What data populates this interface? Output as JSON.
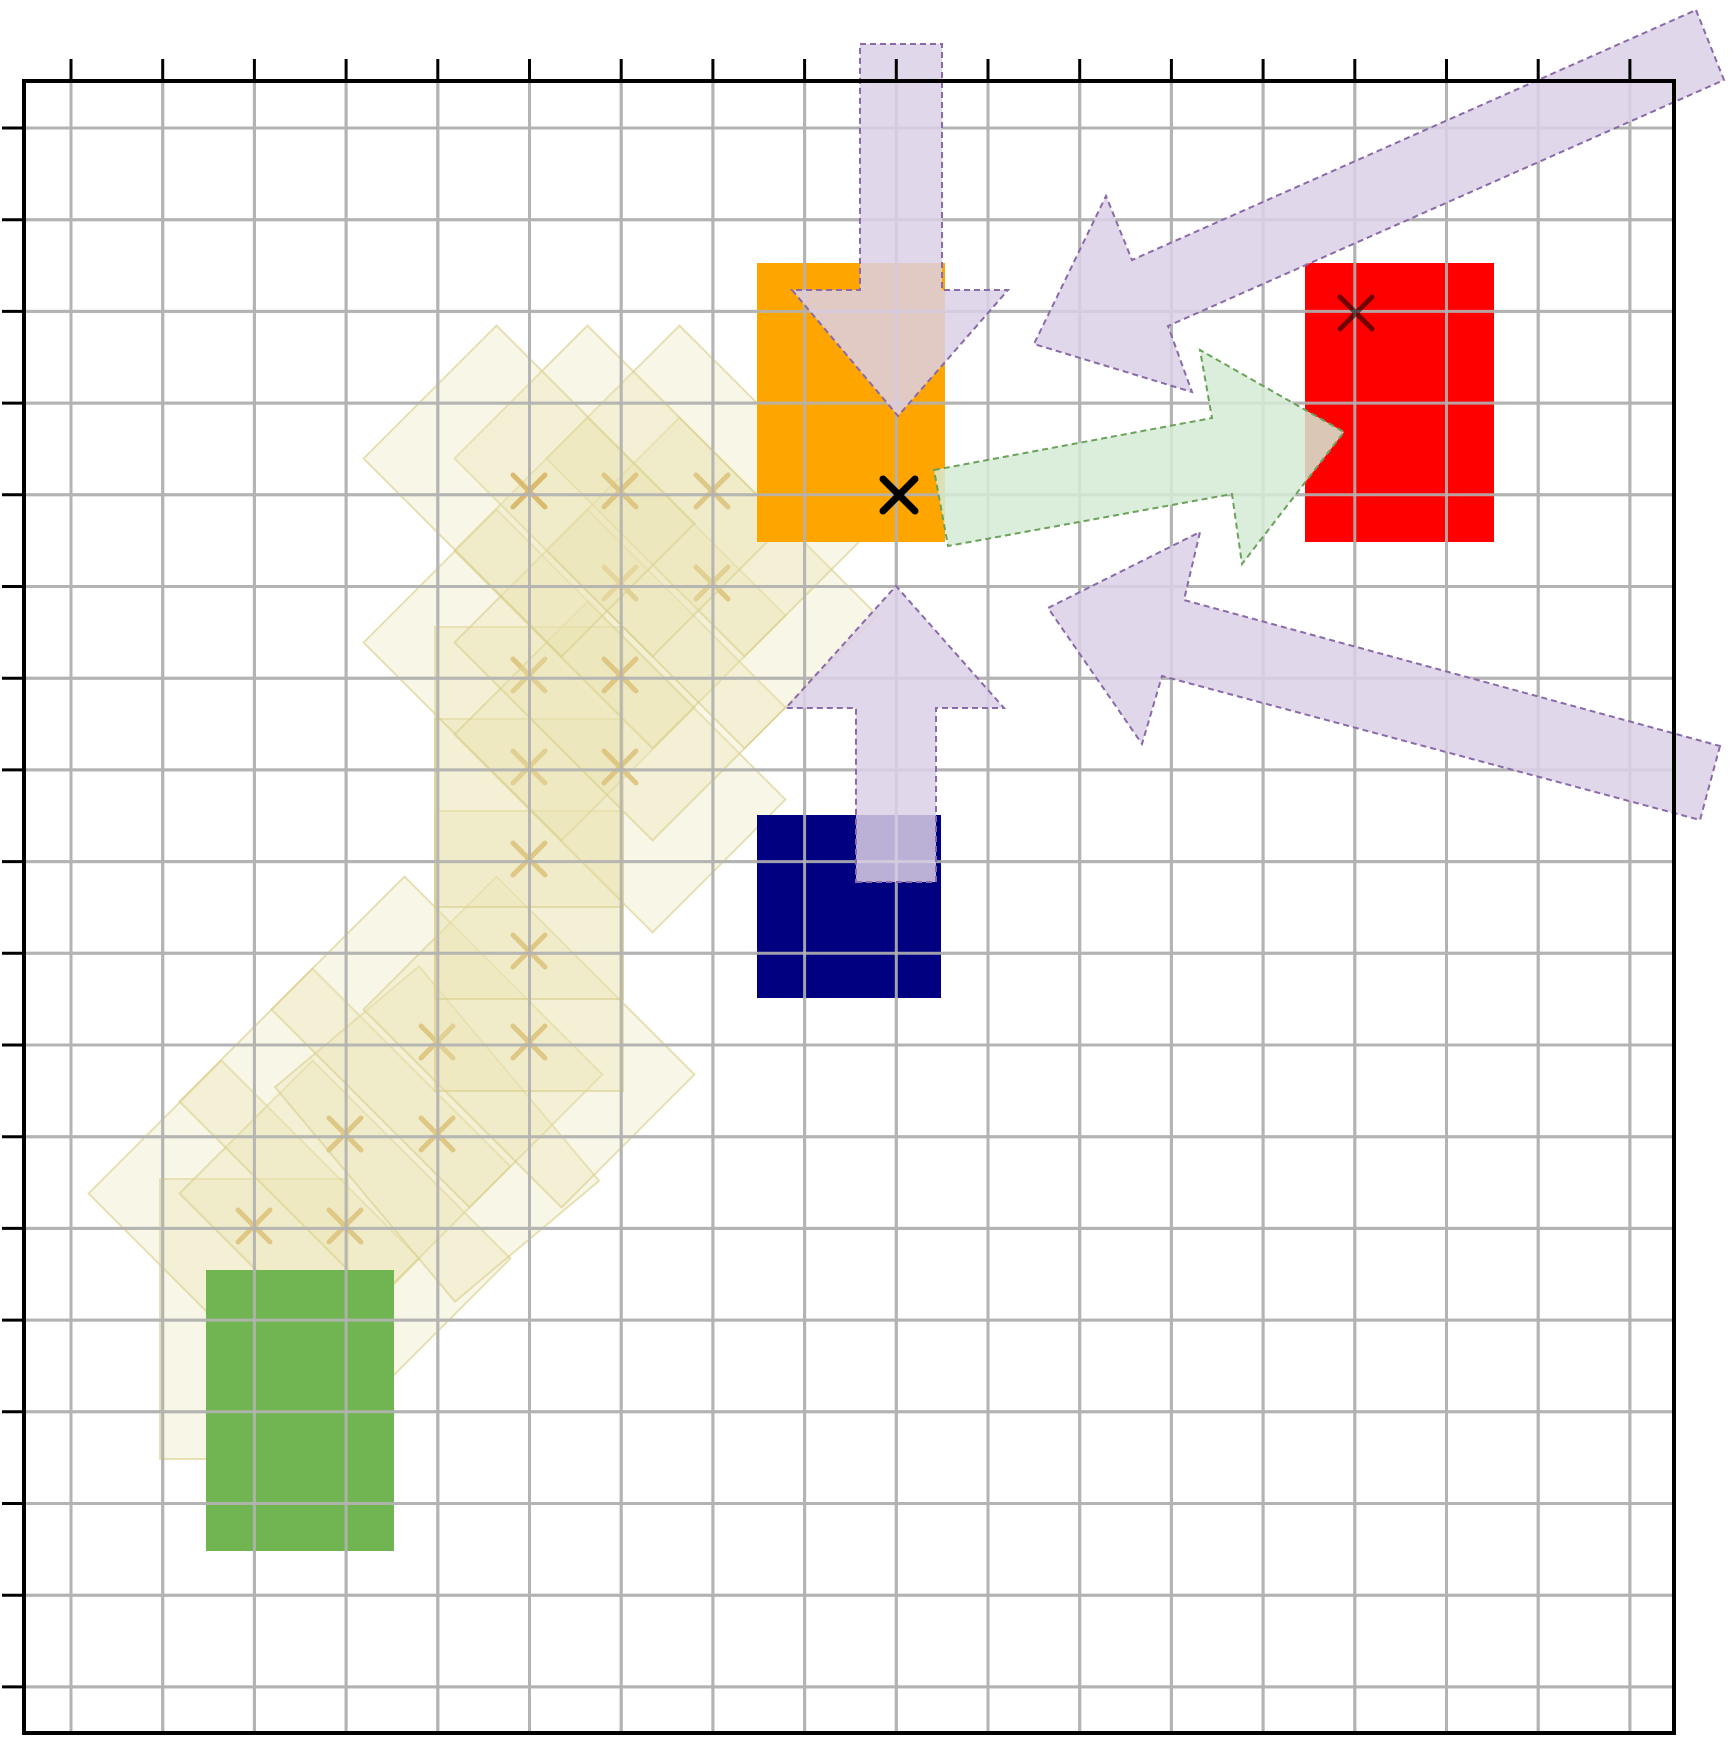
{
  "figure": {
    "grid_cells": 18,
    "colors": {
      "grid": "#b3b3b3",
      "frame": "#000000",
      "green_block": "#4ba234",
      "orange_block": "#ffa500",
      "red_block": "#ff0000",
      "navy_block": "#000080",
      "trail_fill": "#e8e3b0",
      "trail_stroke": "#d8cf8a",
      "trail_marker": "#d8b566",
      "push_arrow_fill": "#dcd0e6",
      "push_arrow_stroke": "#8a6aa8",
      "move_arrow_fill": "#d5ead5",
      "move_arrow_stroke": "#6aa25a",
      "marker": "#000000"
    },
    "blocks": [
      {
        "name": "green-block",
        "color": "#4ba234"
      },
      {
        "name": "orange-block",
        "color": "#ffa500"
      },
      {
        "name": "red-block",
        "color": "#ff0000"
      },
      {
        "name": "navy-block",
        "color": "#000080"
      }
    ],
    "arrows": [
      {
        "name": "down-arrow",
        "kind": "push"
      },
      {
        "name": "up-arrow",
        "kind": "push"
      },
      {
        "name": "upper-left-arrow",
        "kind": "push"
      },
      {
        "name": "lower-left-arrow",
        "kind": "push"
      },
      {
        "name": "right-arrow",
        "kind": "move"
      }
    ],
    "markers": [
      {
        "name": "orange-center-marker"
      },
      {
        "name": "red-target-marker"
      }
    ]
  }
}
